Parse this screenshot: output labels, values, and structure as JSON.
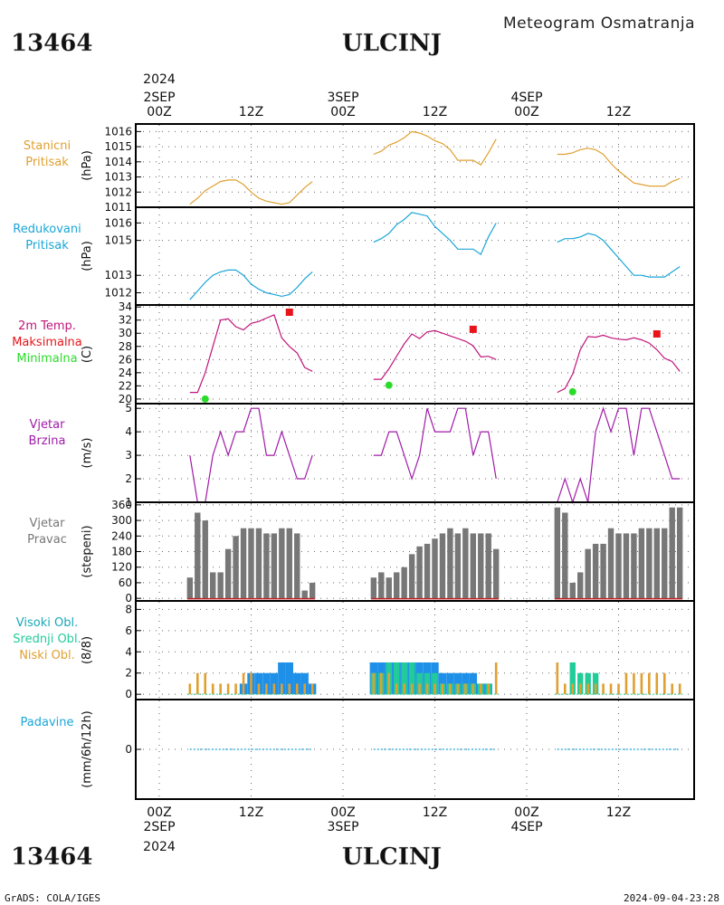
{
  "header": {
    "station_id": "13464",
    "station_name": "ULCINJ",
    "subtitle": "Meteogram Osmatranja"
  },
  "footer": {
    "credit": "GrADS: COLA/IGES",
    "timestamp": "2024-09-04-23:28"
  },
  "colors": {
    "orange": "#e0a030",
    "cyan": "#1aa6d8",
    "magenta": "#c0157a",
    "red": "#e8141a",
    "green": "#2adc2a",
    "purple": "#a01aa8",
    "grey": "#777777",
    "blue": "#1e90e8",
    "teal": "#22cc99",
    "teal_text": "#18a8b8"
  },
  "time_axis": {
    "top_year": "2024",
    "bottom_year": "2024",
    "top_labels": [
      {
        "h": 0,
        "lines": [
          "2SEP",
          "00Z"
        ]
      },
      {
        "h": 12,
        "lines": [
          "12Z"
        ]
      },
      {
        "h": 24,
        "lines": [
          "3SEP",
          "00Z"
        ]
      },
      {
        "h": 36,
        "lines": [
          "12Z"
        ]
      },
      {
        "h": 48,
        "lines": [
          "4SEP",
          "00Z"
        ]
      },
      {
        "h": 60,
        "lines": [
          "12Z"
        ]
      }
    ],
    "bottom_labels": [
      {
        "h": 0,
        "lines": [
          "00Z",
          "2SEP"
        ]
      },
      {
        "h": 12,
        "lines": [
          "12Z"
        ]
      },
      {
        "h": 24,
        "lines": [
          "00Z",
          "3SEP"
        ]
      },
      {
        "h": 36,
        "lines": [
          "12Z"
        ]
      },
      {
        "h": 48,
        "lines": [
          "00Z",
          "4SEP"
        ]
      },
      {
        "h": 60,
        "lines": [
          "12Z"
        ]
      }
    ]
  },
  "chart_data": [
    {
      "type": "line",
      "id": "station_pressure",
      "labels": [
        "Stanicni",
        "Pritisak"
      ],
      "ylabel": "(hPa)",
      "yticks": [
        1011,
        1012,
        1013,
        1014,
        1015,
        1016
      ],
      "ylim": [
        1011,
        1016.5
      ],
      "grid": true,
      "series": [
        {
          "color": "orange",
          "x": [
            4,
            5,
            6,
            7,
            8,
            9,
            10,
            11,
            12,
            13,
            14,
            15,
            16,
            17,
            18,
            19,
            20
          ],
          "y": [
            1011.2,
            1011.6,
            1012.1,
            1012.4,
            1012.7,
            1012.8,
            1012.8,
            1012.5,
            1012.0,
            1011.6,
            1011.4,
            1011.3,
            1011.2,
            1011.3,
            1011.8,
            1012.3,
            1012.7
          ]
        },
        {
          "color": "orange",
          "x": [
            28,
            29,
            30,
            31,
            32,
            33,
            34,
            35,
            36,
            37,
            38,
            39,
            40,
            41,
            42,
            43,
            44
          ],
          "y": [
            1014.5,
            1014.7,
            1015.1,
            1015.3,
            1015.6,
            1016.0,
            1015.9,
            1015.7,
            1015.4,
            1015.2,
            1014.8,
            1014.1,
            1014.1,
            1014.1,
            1013.8,
            1014.6,
            1015.5
          ]
        },
        {
          "color": "orange",
          "x": [
            52,
            53,
            54,
            55,
            56,
            57,
            58,
            59,
            60,
            61,
            62,
            63,
            64,
            65,
            66,
            67,
            68
          ],
          "y": [
            1014.5,
            1014.5,
            1014.6,
            1014.8,
            1014.9,
            1014.8,
            1014.5,
            1013.9,
            1013.4,
            1013.0,
            1012.6,
            1012.5,
            1012.4,
            1012.4,
            1012.4,
            1012.7,
            1012.9
          ]
        }
      ]
    },
    {
      "type": "line",
      "id": "reduced_pressure",
      "labels": [
        "Redukovani",
        "Pritisak"
      ],
      "ylabel": "(hPa)",
      "yticks": [
        1012,
        1013,
        1015,
        1016
      ],
      "ylim": [
        1011.3,
        1016.9
      ],
      "grid": true,
      "series": [
        {
          "color": "cyan",
          "x": [
            4,
            5,
            6,
            7,
            8,
            9,
            10,
            11,
            12,
            13,
            14,
            15,
            16,
            17,
            18,
            19,
            20
          ],
          "y": [
            1011.6,
            1012.1,
            1012.6,
            1013.0,
            1013.2,
            1013.3,
            1013.3,
            1013.0,
            1012.5,
            1012.2,
            1012.0,
            1011.9,
            1011.8,
            1011.9,
            1012.3,
            1012.8,
            1013.2
          ]
        },
        {
          "color": "cyan",
          "x": [
            28,
            29,
            30,
            31,
            32,
            33,
            34,
            35,
            36,
            37,
            38,
            39,
            40,
            41,
            42,
            43,
            44
          ],
          "y": [
            1014.9,
            1015.1,
            1015.4,
            1015.9,
            1016.2,
            1016.6,
            1016.5,
            1016.4,
            1015.8,
            1015.4,
            1015.0,
            1014.5,
            1014.5,
            1014.5,
            1014.2,
            1015.2,
            1016.0
          ]
        },
        {
          "color": "cyan",
          "x": [
            52,
            53,
            54,
            55,
            56,
            57,
            58,
            59,
            60,
            61,
            62,
            63,
            64,
            65,
            66,
            67,
            68
          ],
          "y": [
            1014.9,
            1015.1,
            1015.1,
            1015.2,
            1015.4,
            1015.3,
            1015.0,
            1014.5,
            1014.0,
            1013.5,
            1013.0,
            1013.0,
            1012.9,
            1012.9,
            1012.9,
            1013.2,
            1013.5
          ]
        }
      ]
    },
    {
      "type": "line",
      "id": "temperature",
      "labels": [
        "2m Temp.",
        "Maksimalna",
        "Minimalna"
      ],
      "label_colors": [
        "magenta",
        "red",
        "green"
      ],
      "ylabel": "(C)",
      "yticks": [
        20,
        22,
        24,
        26,
        28,
        30,
        32,
        34
      ],
      "ylim": [
        19.3,
        34.3
      ],
      "grid": true,
      "series": [
        {
          "color": "magenta",
          "x": [
            4,
            5,
            6,
            7,
            8,
            9,
            10,
            11,
            12,
            13,
            14,
            15,
            16,
            17,
            18,
            19,
            20
          ],
          "y": [
            21,
            21,
            24,
            28,
            32,
            32.2,
            31,
            30.5,
            31.5,
            31.8,
            32.3,
            32.8,
            29.3,
            28,
            27,
            24.8,
            24.2
          ]
        },
        {
          "color": "magenta",
          "x": [
            28,
            29,
            30,
            31,
            32,
            33,
            34,
            35,
            36,
            37,
            38,
            39,
            40,
            41,
            42,
            43,
            44
          ],
          "y": [
            23,
            23,
            24.6,
            26.5,
            28.4,
            29.9,
            29.2,
            30.2,
            30.4,
            30,
            29.6,
            29.2,
            28.8,
            28.1,
            26.4,
            26.5,
            26
          ]
        },
        {
          "color": "magenta",
          "x": [
            52,
            53,
            54,
            55,
            56,
            57,
            58,
            59,
            60,
            61,
            62,
            63,
            64,
            65,
            66,
            67,
            68
          ],
          "y": [
            21,
            21.6,
            23.8,
            27.5,
            29.5,
            29.4,
            29.7,
            29.3,
            29.1,
            29,
            29.3,
            29,
            28.5,
            27.5,
            26.2,
            25.7,
            24.2
          ]
        }
      ],
      "points": [
        {
          "kind": "max",
          "color": "red",
          "x": 17,
          "y": 33.2
        },
        {
          "kind": "max",
          "color": "red",
          "x": 41,
          "y": 30.6
        },
        {
          "kind": "max",
          "color": "red",
          "x": 65,
          "y": 29.9
        },
        {
          "kind": "min",
          "color": "green",
          "x": 6,
          "y": 20
        },
        {
          "kind": "min",
          "color": "green",
          "x": 30,
          "y": 22.1
        },
        {
          "kind": "min",
          "color": "green",
          "x": 54,
          "y": 21.1
        }
      ]
    },
    {
      "type": "line",
      "id": "wind_speed",
      "labels": [
        "Vjetar",
        "Brzina"
      ],
      "ylabel": "(m/s)",
      "yticks": [
        1,
        2,
        3,
        4,
        5
      ],
      "ylim": [
        1,
        5.2
      ],
      "grid": true,
      "series": [
        {
          "color": "purple",
          "x": [
            4,
            5,
            6,
            7,
            8,
            9,
            10,
            11,
            12,
            13,
            14,
            15,
            16,
            17,
            18,
            19,
            20
          ],
          "y": [
            3,
            1,
            1,
            3,
            4,
            3,
            4,
            4,
            5,
            5,
            3,
            3,
            4,
            3,
            2,
            2,
            3
          ]
        },
        {
          "color": "purple",
          "x": [
            28,
            29,
            30,
            31,
            32,
            33,
            34,
            35,
            36,
            37,
            38,
            39,
            40,
            41,
            42,
            43,
            44
          ],
          "y": [
            3,
            3,
            4,
            4,
            3,
            2,
            3,
            5,
            4,
            4,
            4,
            5,
            5,
            3,
            4,
            4,
            2
          ]
        },
        {
          "color": "purple",
          "x": [
            52,
            53,
            54,
            55,
            56,
            57,
            58,
            59,
            60,
            61,
            62,
            63,
            64,
            65,
            66,
            67,
            68
          ],
          "y": [
            1,
            2,
            1,
            2,
            1,
            4,
            5,
            4,
            5,
            5,
            3,
            5,
            5,
            4,
            3,
            2,
            2
          ]
        }
      ]
    },
    {
      "type": "bar",
      "id": "wind_direction",
      "labels": [
        "Vjetar",
        "Pravac"
      ],
      "ylabel": "(stepeni)",
      "yticks": [
        0,
        60,
        120,
        180,
        240,
        300,
        360
      ],
      "ylim": [
        -10,
        370
      ],
      "grid": true,
      "series": [
        {
          "color": "grey",
          "x": [
            4,
            5,
            6,
            7,
            8,
            9,
            10,
            11,
            12,
            13,
            14,
            15,
            16,
            17,
            18,
            19,
            20
          ],
          "values": [
            80,
            330,
            300,
            100,
            100,
            190,
            240,
            270,
            270,
            270,
            250,
            250,
            270,
            270,
            250,
            30,
            60
          ]
        },
        {
          "color": "grey",
          "x": [
            28,
            29,
            30,
            31,
            32,
            33,
            34,
            35,
            36,
            37,
            38,
            39,
            40,
            41,
            42,
            43,
            44
          ],
          "values": [
            80,
            100,
            80,
            100,
            120,
            170,
            200,
            210,
            230,
            250,
            270,
            250,
            270,
            250,
            250,
            250,
            190
          ]
        },
        {
          "color": "grey",
          "x": [
            52,
            53,
            54,
            55,
            56,
            57,
            58,
            59,
            60,
            61,
            62,
            63,
            64,
            65,
            66,
            67,
            68
          ],
          "values": [
            350,
            330,
            60,
            100,
            190,
            210,
            210,
            270,
            250,
            250,
            250,
            270,
            270,
            270,
            270,
            350,
            350
          ]
        }
      ]
    },
    {
      "type": "bar",
      "id": "cloud_cover",
      "labels": [
        "Visoki Obl.",
        "Srednji Obl.",
        "Niski Obl."
      ],
      "label_colors": [
        "teal_text",
        "teal",
        "orange"
      ],
      "ylabel": "(8/8)",
      "yticks": [
        0,
        2,
        4,
        6,
        8
      ],
      "ylim": [
        -0.5,
        8.8
      ],
      "grid": true,
      "x": [
        4,
        5,
        6,
        7,
        8,
        9,
        10,
        11,
        12,
        13,
        14,
        15,
        16,
        17,
        18,
        19,
        20,
        28,
        29,
        30,
        31,
        32,
        33,
        34,
        35,
        36,
        37,
        38,
        39,
        40,
        41,
        42,
        43,
        44,
        52,
        53,
        54,
        55,
        56,
        57,
        58,
        59,
        60,
        61,
        62,
        63,
        64,
        65,
        66,
        67,
        68
      ],
      "series": [
        {
          "name": "Visoki Obl.",
          "color": "blue",
          "values": [
            0,
            0,
            0,
            0,
            0,
            0,
            0,
            1,
            2,
            2,
            2,
            2,
            3,
            3,
            2,
            2,
            1,
            3,
            3,
            3,
            3,
            3,
            3,
            3,
            3,
            3,
            2,
            2,
            2,
            2,
            2,
            1,
            1,
            0,
            0,
            0,
            0,
            0,
            0,
            0,
            0,
            0,
            0,
            0,
            0,
            0,
            0,
            0,
            0,
            0,
            0
          ]
        },
        {
          "name": "Srednji Obl.",
          "color": "teal",
          "values": [
            0,
            0,
            0,
            0,
            0,
            0,
            0,
            0,
            0,
            0,
            0,
            0,
            0,
            0,
            0,
            0,
            0,
            2,
            2,
            3,
            3,
            3,
            3,
            2,
            2,
            2,
            1,
            1,
            1,
            1,
            1,
            1,
            1,
            0,
            0,
            0,
            3,
            2,
            2,
            2,
            0,
            0,
            0,
            0,
            0,
            0,
            0,
            0,
            0,
            0,
            0
          ]
        },
        {
          "name": "Niski Obl.",
          "color": "orange",
          "values": [
            1,
            2,
            2,
            1,
            1,
            1,
            1,
            2,
            2,
            1,
            1,
            1,
            1,
            1,
            1,
            1,
            1,
            2,
            2,
            2,
            1,
            1,
            1,
            1,
            1,
            1,
            1,
            1,
            1,
            1,
            1,
            1,
            1,
            3,
            3,
            1,
            1,
            1,
            1,
            1,
            1,
            1,
            1,
            2,
            2,
            2,
            2,
            2,
            2,
            1,
            1
          ]
        }
      ]
    },
    {
      "type": "line",
      "id": "precipitation",
      "labels": [
        "Padavine"
      ],
      "ylabel": "(mm/6h/12h)",
      "yticks": [
        0
      ],
      "ylim": [
        -1.8,
        1.8
      ],
      "grid": true,
      "series": [
        {
          "color": "cyan",
          "x": [
            4,
            20
          ],
          "y": [
            0,
            0
          ]
        },
        {
          "color": "cyan",
          "x": [
            28,
            44
          ],
          "y": [
            0,
            0
          ]
        },
        {
          "color": "cyan",
          "x": [
            52,
            68
          ],
          "y": [
            0,
            0
          ]
        }
      ]
    }
  ]
}
